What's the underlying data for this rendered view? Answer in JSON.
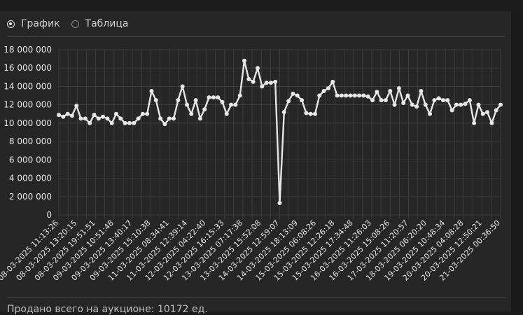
{
  "view_toggle": {
    "options": [
      {
        "label": "График",
        "checked": true
      },
      {
        "label": "Таблица",
        "checked": false
      }
    ]
  },
  "footer": {
    "text": "Продано всего на аукционе: 10172 ед."
  },
  "colors": {
    "line": "#e6e6e6",
    "grid": "#3c3c3c",
    "background": "#262626"
  },
  "chart_data": {
    "type": "line",
    "title": "",
    "xlabel": "",
    "ylabel": "",
    "ylim": [
      0,
      18000000
    ],
    "yticks": [
      0,
      2000000,
      4000000,
      6000000,
      8000000,
      10000000,
      12000000,
      14000000,
      16000000,
      18000000
    ],
    "ytick_labels": [
      "0",
      "2 000 000",
      "4 000 000",
      "6 000 000",
      "8 000 000",
      "10 000 000",
      "12 000 000",
      "14 000 000",
      "16 000 000",
      "18 000 000"
    ],
    "grid": true,
    "legend": "none",
    "x_tick_labels": [
      "08-03-2025 11:13:26",
      "08-03-2025 13:20:15",
      "08-03-2025 19:51:51",
      "09-03-2025 10:51:48",
      "09-03-2025 13:40:17",
      "09-03-2025 15:10:38",
      "11-03-2025 08:34:41",
      "11-03-2025 12:39:14",
      "12-03-2025 04:22:40",
      "12-03-2025 16:15:33",
      "13-03-2025 07:17:38",
      "13-03-2025 15:52:08",
      "14-03-2025 12:59:07",
      "14-03-2025 18:13:09",
      "15-03-2025 06:08:26",
      "15-03-2025 12:26:18",
      "15-03-2025 17:34:48",
      "16-03-2025 11:26:03",
      "16-03-2025 15:08:26",
      "17-03-2025 11:20:57",
      "18-03-2025 06:20:20",
      "19-03-2025 10:48:34",
      "20-03-2025 04:08:28",
      "20-03-2025 12:50:21",
      "21-03-2025 00:36:50"
    ],
    "series": [
      {
        "values": [
          10900000,
          10700000,
          11000000,
          10800000,
          11900000,
          10500000,
          10500000,
          10000000,
          10900000,
          10500000,
          10700000,
          10500000,
          10000000,
          11000000,
          10500000,
          10000000,
          10000000,
          10000000,
          10500000,
          11000000,
          11000000,
          13500000,
          12500000,
          10500000,
          9900000,
          10500000,
          10500000,
          12500000,
          14000000,
          12000000,
          11000000,
          12500000,
          10500000,
          11500000,
          12800000,
          12800000,
          12800000,
          12300000,
          11000000,
          12000000,
          12000000,
          13000000,
          16800000,
          14800000,
          14500000,
          16000000,
          14000000,
          14400000,
          14400000,
          14500000,
          1300000,
          11200000,
          12400000,
          13200000,
          13000000,
          12500000,
          11100000,
          11000000,
          11000000,
          13000000,
          13500000,
          13800000,
          14500000,
          13000000,
          13000000,
          13000000,
          13000000,
          13000000,
          13000000,
          13000000,
          12900000,
          12500000,
          13400000,
          12500000,
          12500000,
          13500000,
          12000000,
          13800000,
          12200000,
          13000000,
          12000000,
          11800000,
          13500000,
          12000000,
          11000000,
          12500000,
          12700000,
          12500000,
          12500000,
          11400000,
          12000000,
          12000000,
          12100000,
          12500000,
          10000000,
          12000000,
          11000000,
          11200000,
          10000000,
          11400000,
          12000000
        ]
      }
    ]
  }
}
